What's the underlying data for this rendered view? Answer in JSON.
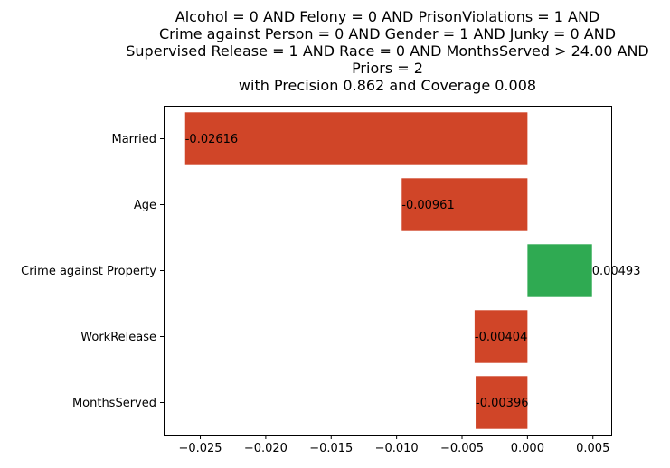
{
  "chart_data": {
    "type": "bar",
    "orientation": "horizontal",
    "title_lines": [
      "Alcohol = 0 AND Felony = 0 AND PrisonViolations = 1 AND",
      "Crime against Person = 0 AND Gender = 1 AND Junky = 0 AND",
      "Supervised Release = 1 AND Race = 0 AND MonthsServed > 24.00 AND",
      "Priors = 2",
      "with Precision 0.862 and Coverage 0.008"
    ],
    "categories": [
      "Married",
      "Age",
      "Crime against Property",
      "WorkRelease",
      "MonthsServed"
    ],
    "values": [
      -0.02616,
      -0.00961,
      0.00493,
      -0.00404,
      -0.00396
    ],
    "value_labels": [
      "-0.02616",
      "-0.00961",
      "0.00493",
      "-0.00404",
      "-0.00396"
    ],
    "colors": {
      "negative": "#d04528",
      "positive": "#2faa52"
    },
    "xlim": [
      -0.0278,
      0.0064
    ],
    "xticks": [
      -0.025,
      -0.02,
      -0.015,
      -0.01,
      -0.005,
      0.0,
      0.005
    ],
    "xtick_labels": [
      "−0.025",
      "−0.020",
      "−0.015",
      "−0.010",
      "−0.005",
      "0.000",
      "0.005"
    ],
    "xlabel": "",
    "ylabel": "",
    "grid": false,
    "legend": false
  }
}
